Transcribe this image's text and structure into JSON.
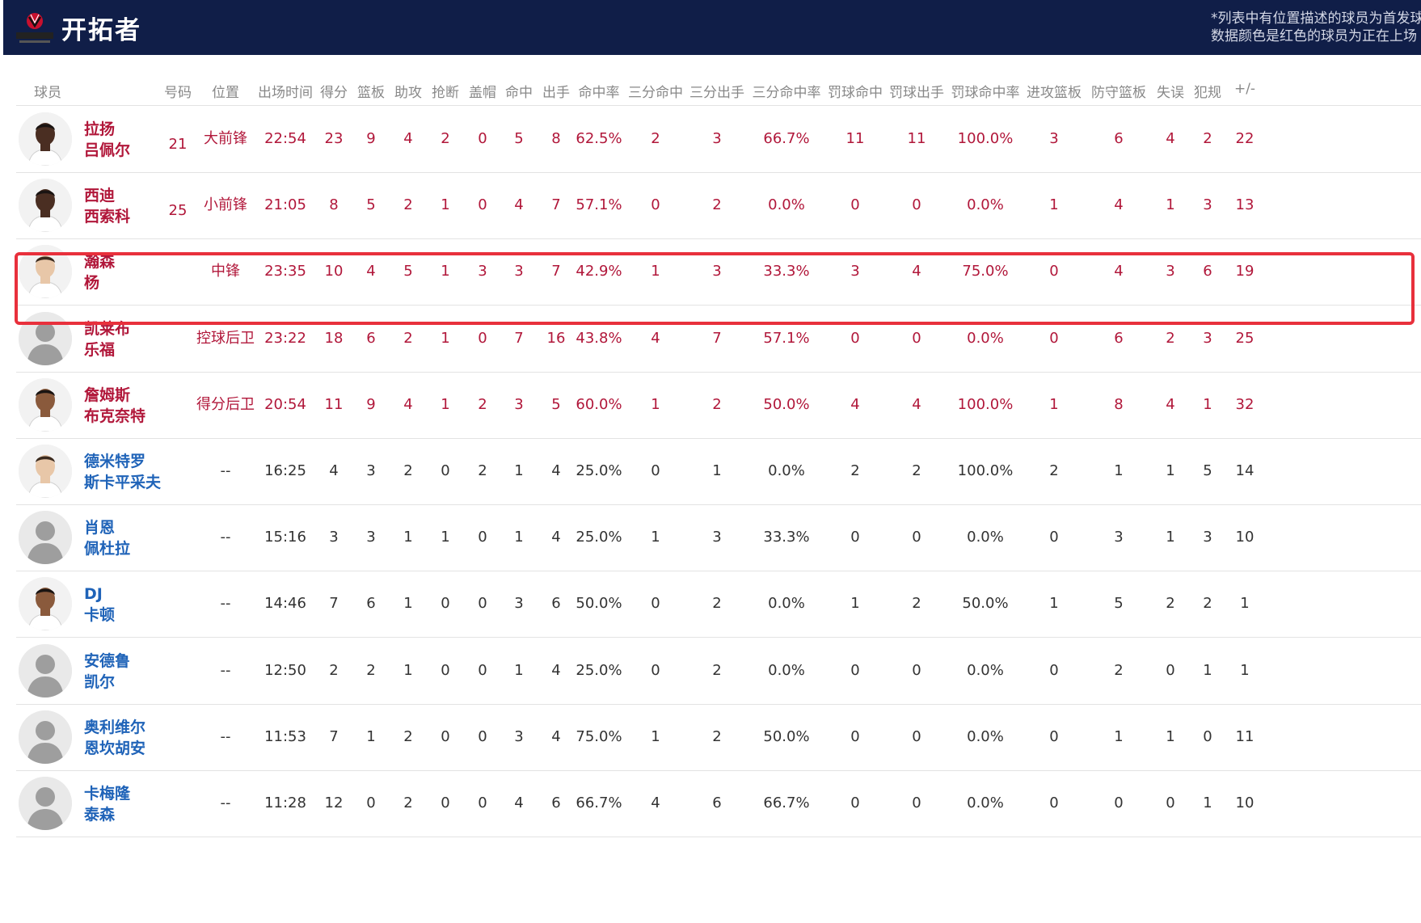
{
  "header": {
    "team_name": "开拓者",
    "note_line1": "*列表中有位置描述的球员为首发球",
    "note_line2": "数据颜色是红色的球员为正在上场"
  },
  "columns": [
    "球员",
    "号码",
    "位置",
    "出场时间",
    "得分",
    "篮板",
    "助攻",
    "抢断",
    "盖帽",
    "命中",
    "出手",
    "命中率",
    "三分命中",
    "三分出手",
    "三分命中率",
    "罚球命中",
    "罚球出手",
    "罚球命中率",
    "进攻篮板",
    "防守篮板",
    "失误",
    "犯规",
    "+/-"
  ],
  "players": [
    {
      "name1": "拉扬",
      "name2": "吕佩尔",
      "status": "starter",
      "avatar": "photo-dark",
      "stats": [
        "21",
        "大前锋",
        "22:54",
        "23",
        "9",
        "4",
        "2",
        "0",
        "5",
        "8",
        "62.5%",
        "2",
        "3",
        "66.7%",
        "11",
        "11",
        "100.0%",
        "3",
        "6",
        "4",
        "2",
        "22"
      ]
    },
    {
      "name1": "西迪",
      "name2": "西索科",
      "status": "starter",
      "avatar": "photo-dark",
      "stats": [
        "25",
        "小前锋",
        "21:05",
        "8",
        "5",
        "2",
        "1",
        "0",
        "4",
        "7",
        "57.1%",
        "0",
        "2",
        "0.0%",
        "0",
        "0",
        "0.0%",
        "1",
        "4",
        "1",
        "3",
        "13"
      ]
    },
    {
      "name1": "瀚森",
      "name2": "杨",
      "status": "starter",
      "avatar": "photo-light",
      "stats": [
        "",
        "中锋",
        "23:35",
        "10",
        "4",
        "5",
        "1",
        "3",
        "3",
        "7",
        "42.9%",
        "1",
        "3",
        "33.3%",
        "3",
        "4",
        "75.0%",
        "0",
        "4",
        "3",
        "6",
        "19"
      ]
    },
    {
      "name1": "凯莱布",
      "name2": "乐福",
      "status": "starter",
      "avatar": "silhouette",
      "stats": [
        "",
        "控球后卫",
        "23:22",
        "18",
        "6",
        "2",
        "1",
        "0",
        "7",
        "16",
        "43.8%",
        "4",
        "7",
        "57.1%",
        "0",
        "0",
        "0.0%",
        "0",
        "6",
        "2",
        "3",
        "25"
      ]
    },
    {
      "name1": "詹姆斯",
      "name2": "布克奈特",
      "status": "starter",
      "avatar": "photo-medium",
      "stats": [
        "",
        "得分后卫",
        "20:54",
        "11",
        "9",
        "4",
        "1",
        "2",
        "3",
        "5",
        "60.0%",
        "1",
        "2",
        "50.0%",
        "4",
        "4",
        "100.0%",
        "1",
        "8",
        "4",
        "1",
        "32"
      ]
    },
    {
      "name1": "德米特罗",
      "name2": "斯卡平采夫",
      "status": "bench",
      "avatar": "photo-light",
      "stats": [
        "",
        "--",
        "16:25",
        "4",
        "3",
        "2",
        "0",
        "2",
        "1",
        "4",
        "25.0%",
        "0",
        "1",
        "0.0%",
        "2",
        "2",
        "100.0%",
        "2",
        "1",
        "1",
        "5",
        "14"
      ]
    },
    {
      "name1": "肖恩",
      "name2": "佩杜拉",
      "status": "bench",
      "avatar": "silhouette",
      "stats": [
        "",
        "--",
        "15:16",
        "3",
        "3",
        "1",
        "1",
        "0",
        "1",
        "4",
        "25.0%",
        "1",
        "3",
        "33.3%",
        "0",
        "0",
        "0.0%",
        "0",
        "3",
        "1",
        "3",
        "10"
      ]
    },
    {
      "name1": "DJ",
      "name2": "卡顿",
      "status": "bench",
      "avatar": "photo-medium",
      "stats": [
        "",
        "--",
        "14:46",
        "7",
        "6",
        "1",
        "0",
        "0",
        "3",
        "6",
        "50.0%",
        "0",
        "2",
        "0.0%",
        "1",
        "2",
        "50.0%",
        "1",
        "5",
        "2",
        "2",
        "1"
      ]
    },
    {
      "name1": "安德鲁",
      "name2": "凯尔",
      "status": "bench",
      "avatar": "silhouette",
      "stats": [
        "",
        "--",
        "12:50",
        "2",
        "2",
        "1",
        "0",
        "0",
        "1",
        "4",
        "25.0%",
        "0",
        "2",
        "0.0%",
        "0",
        "0",
        "0.0%",
        "0",
        "2",
        "0",
        "1",
        "1"
      ]
    },
    {
      "name1": "奥利维尔",
      "name2": "恩坎胡安",
      "status": "bench",
      "avatar": "silhouette",
      "stats": [
        "",
        "--",
        "11:53",
        "7",
        "1",
        "2",
        "0",
        "0",
        "3",
        "4",
        "75.0%",
        "1",
        "2",
        "50.0%",
        "0",
        "0",
        "0.0%",
        "0",
        "1",
        "1",
        "0",
        "11"
      ]
    },
    {
      "name1": "卡梅隆",
      "name2": "泰森",
      "status": "bench",
      "avatar": "silhouette",
      "stats": [
        "",
        "--",
        "11:28",
        "12",
        "0",
        "2",
        "0",
        "0",
        "4",
        "6",
        "66.7%",
        "4",
        "6",
        "66.7%",
        "0",
        "0",
        "0.0%",
        "0",
        "0",
        "0",
        "1",
        "10"
      ]
    }
  ],
  "highlighted_player": "瀚森 杨",
  "colors": {
    "header_bg": "#101e48",
    "starter_text": "#b1173a",
    "bench_name": "#1f63b8",
    "highlight_border": "#e8303c"
  }
}
